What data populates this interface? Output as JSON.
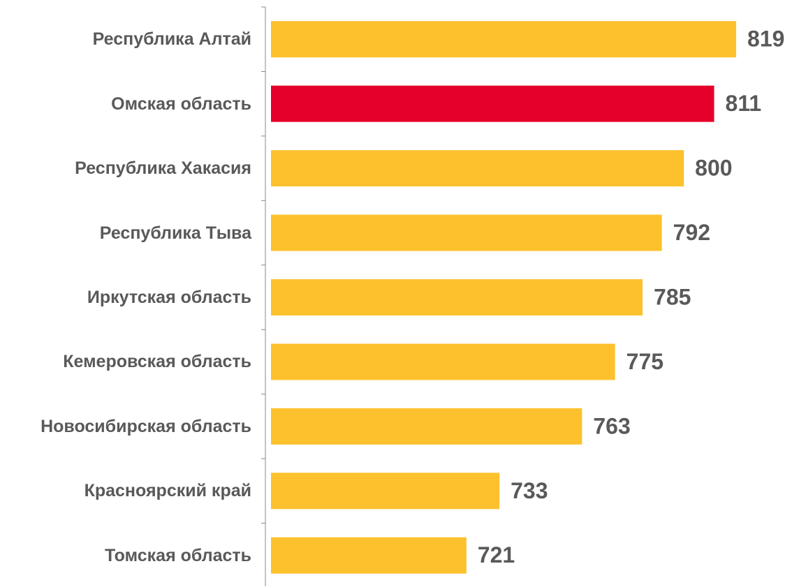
{
  "chart_data": {
    "type": "bar",
    "orientation": "horizontal",
    "categories": [
      "Республика Алтай",
      "Омская область",
      "Республика Хакасия",
      "Республика Тыва",
      "Иркутская область",
      "Кемеровская область",
      "Новосибирская область",
      "Красноярский край",
      "Томская область"
    ],
    "values": [
      819,
      811,
      800,
      792,
      785,
      775,
      763,
      733,
      721
    ],
    "colors": [
      "#FDC12D",
      "#E4002B",
      "#FDC12D",
      "#FDC12D",
      "#FDC12D",
      "#FDC12D",
      "#FDC12D",
      "#FDC12D",
      "#FDC12D"
    ],
    "xlim": [
      650,
      820
    ]
  }
}
